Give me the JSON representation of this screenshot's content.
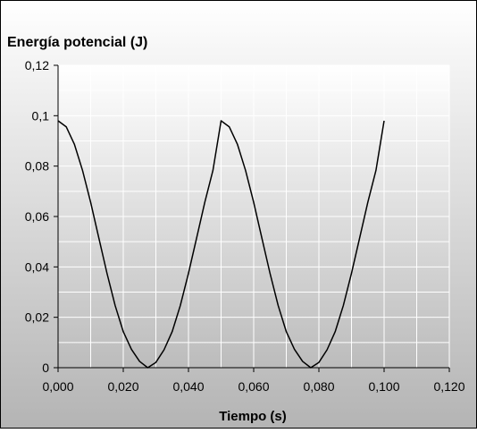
{
  "chart_data": {
    "type": "line",
    "title": "Energía potencial (J)",
    "xlabel": "Tiempo (s)",
    "ylabel": "",
    "xlim": [
      0,
      0.12
    ],
    "ylim": [
      0,
      0.12
    ],
    "x_ticks": [
      "0,000",
      "0,020",
      "0,040",
      "0,060",
      "0,080",
      "0,100",
      "0,120"
    ],
    "y_ticks": [
      "0",
      "0,02",
      "0,04",
      "0,06",
      "0,08",
      "0,1",
      "0,12"
    ],
    "x_gridlines": [
      0.0,
      0.01,
      0.02,
      0.03,
      0.04,
      0.05,
      0.06,
      0.07,
      0.08,
      0.09,
      0.1,
      0.11,
      0.12
    ],
    "y_gridlines": [
      0.01,
      0.02,
      0.03,
      0.04,
      0.05,
      0.06,
      0.07,
      0.08,
      0.09,
      0.1,
      0.11,
      0.12
    ],
    "grid": true,
    "legend": "none",
    "line_color": "#000000",
    "background": "gradient white to gray",
    "series": [
      {
        "x": [
          0.0,
          0.0025,
          0.005,
          0.0075,
          0.01,
          0.0125,
          0.015,
          0.0175,
          0.02,
          0.0225,
          0.025,
          0.0275,
          0.03,
          0.0325,
          0.035,
          0.0375,
          0.04,
          0.0425,
          0.045,
          0.0475,
          0.05,
          0.0525,
          0.055,
          0.0575,
          0.06,
          0.0625,
          0.065,
          0.0675,
          0.07,
          0.0725,
          0.075,
          0.0775,
          0.08,
          0.0825,
          0.085,
          0.0875,
          0.09,
          0.0925,
          0.095,
          0.0975,
          0.1
        ],
        "values": [
          0.098,
          0.0956,
          0.0887,
          0.0783,
          0.0656,
          0.0515,
          0.0375,
          0.0247,
          0.0143,
          0.0073,
          0.0025,
          0.0,
          0.0021,
          0.0071,
          0.0143,
          0.0247,
          0.0375,
          0.0515,
          0.0656,
          0.0783,
          0.098,
          0.0956,
          0.0887,
          0.0783,
          0.0656,
          0.0515,
          0.0375,
          0.0247,
          0.0143,
          0.0073,
          0.0025,
          0.0,
          0.0021,
          0.0071,
          0.0143,
          0.0247,
          0.0375,
          0.0515,
          0.0656,
          0.0783,
          0.098
        ]
      }
    ]
  }
}
